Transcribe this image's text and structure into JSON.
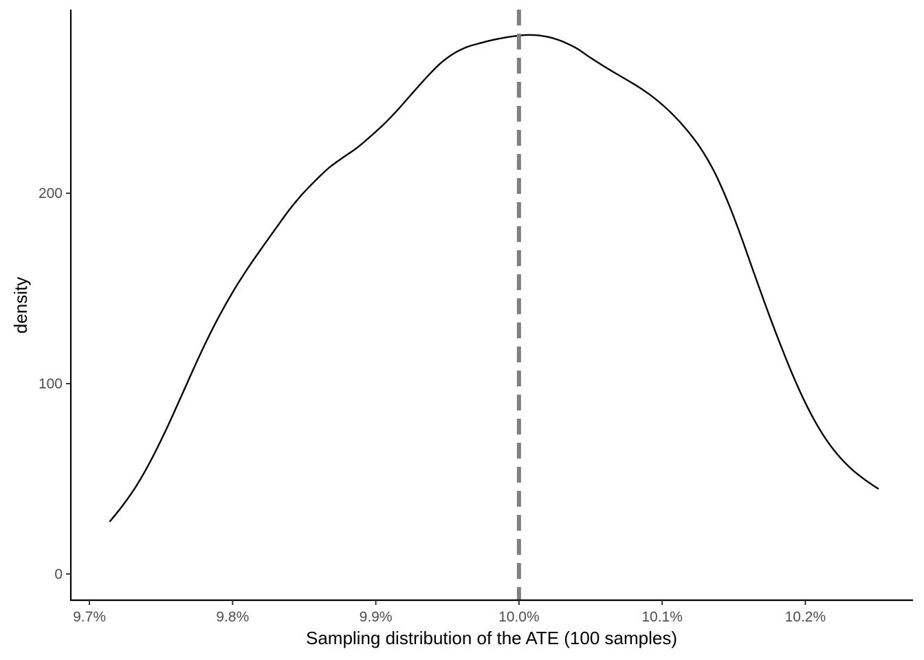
{
  "chart_data": {
    "type": "line",
    "xlabel": "Sampling distribution of the ATE (100 samples)",
    "ylabel": "density",
    "xlim": [
      9.687,
      10.2752
    ],
    "ylim": [
      -13.8,
      296.5
    ],
    "x_ticks": [
      {
        "value": 9.7,
        "label": "9.7%"
      },
      {
        "value": 9.8,
        "label": "9.8%"
      },
      {
        "value": 9.9,
        "label": "9.9%"
      },
      {
        "value": 10.0,
        "label": "10.0%"
      },
      {
        "value": 10.1,
        "label": "10.1%"
      },
      {
        "value": 10.2,
        "label": "10.2%"
      }
    ],
    "y_ticks": [
      {
        "value": 0,
        "label": "0"
      },
      {
        "value": 100,
        "label": "100"
      },
      {
        "value": 200,
        "label": "200"
      }
    ],
    "reference_line": {
      "x": 10.0,
      "style": "dashed",
      "color": "#7f7f7f"
    },
    "series": [
      {
        "color": "#000000",
        "x": [
          9.7141,
          9.7237,
          9.7333,
          9.7429,
          9.7525,
          9.7621,
          9.7717,
          9.7812,
          9.7908,
          9.8004,
          9.81,
          9.8196,
          9.8292,
          9.8388,
          9.8484,
          9.858,
          9.8676,
          9.8771,
          9.8867,
          9.8963,
          9.9059,
          9.9155,
          9.9251,
          9.9347,
          9.9443,
          9.9539,
          9.9635,
          9.973,
          9.9826,
          9.9922,
          10.0018,
          10.0066,
          10.0114,
          10.0162,
          10.021,
          10.0258,
          10.0306,
          10.0402,
          10.0498,
          10.0594,
          10.0689,
          10.0785,
          10.0881,
          10.0977,
          10.1073,
          10.1169,
          10.1265,
          10.1361,
          10.1457,
          10.1553,
          10.1648,
          10.1744,
          10.184,
          10.1936,
          10.2032,
          10.2128,
          10.2224,
          10.232,
          10.2416,
          10.2512
        ],
        "y": [
          27.4,
          36.4,
          46.9,
          59.6,
          74.1,
          89.9,
          106.1,
          121.5,
          135.7,
          148.5,
          159.9,
          170.4,
          180.5,
          190.5,
          199.3,
          206.8,
          213.6,
          218.8,
          223.8,
          229.9,
          236.5,
          244.0,
          252.2,
          260.3,
          267.7,
          273.2,
          276.8,
          278.9,
          280.7,
          282.1,
          283.0,
          283.2,
          283.1,
          282.7,
          282.0,
          281.0,
          279.7,
          276.2,
          271.3,
          266.7,
          262.4,
          258.2,
          253.6,
          248.1,
          241.5,
          233.6,
          224.1,
          211.8,
          195.8,
          176.9,
          156.7,
          136.7,
          117.8,
          100.3,
          85.1,
          72.6,
          62.8,
          55.3,
          49.5,
          44.6
        ]
      }
    ]
  }
}
